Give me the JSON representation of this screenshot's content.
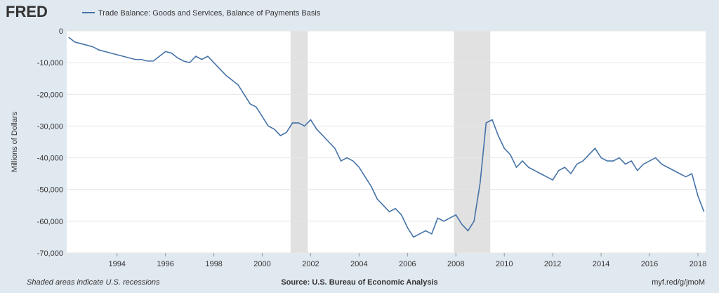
{
  "chart_data": {
    "type": "line",
    "logo": "FRED",
    "ylabel": "Millions of Dollars",
    "footnote": "Shaded areas indicate U.S. recessions",
    "source": "Source: U.S. Bureau of Economic Analysis",
    "link": "myf.red/g/jmoM",
    "x": [
      1992,
      1992.25,
      1992.5,
      1992.75,
      1993,
      1993.25,
      1993.5,
      1993.75,
      1994,
      1994.25,
      1994.5,
      1994.75,
      1995,
      1995.25,
      1995.5,
      1995.75,
      1996,
      1996.25,
      1996.5,
      1996.75,
      1997,
      1997.25,
      1997.5,
      1997.75,
      1998,
      1998.25,
      1998.5,
      1998.75,
      1999,
      1999.25,
      1999.5,
      1999.75,
      2000,
      2000.25,
      2000.5,
      2000.75,
      2001,
      2001.25,
      2001.5,
      2001.75,
      2002,
      2002.25,
      2002.5,
      2002.75,
      2003,
      2003.25,
      2003.5,
      2003.75,
      2004,
      2004.25,
      2004.5,
      2004.75,
      2005,
      2005.25,
      2005.5,
      2005.75,
      2006,
      2006.25,
      2006.5,
      2006.75,
      2007,
      2007.25,
      2007.5,
      2007.75,
      2008,
      2008.25,
      2008.5,
      2008.75,
      2009,
      2009.25,
      2009.5,
      2009.75,
      2010,
      2010.25,
      2010.5,
      2010.75,
      2011,
      2011.25,
      2011.5,
      2011.75,
      2012,
      2012.25,
      2012.5,
      2012.75,
      2013,
      2013.25,
      2013.5,
      2013.75,
      2014,
      2014.25,
      2014.5,
      2014.75,
      2015,
      2015.25,
      2015.5,
      2015.75,
      2016,
      2016.25,
      2016.5,
      2016.75,
      2017,
      2017.25,
      2017.5,
      2017.75,
      2018,
      2018.25
    ],
    "series": [
      {
        "name": "Trade Balance: Goods and Services, Balance of Payments Basis",
        "color": "#4572a7",
        "values": [
          -2000,
          -3500,
          -4000,
          -4500,
          -5000,
          -6000,
          -6500,
          -7000,
          -7500,
          -8000,
          -8500,
          -9000,
          -9000,
          -9500,
          -9500,
          -8000,
          -6500,
          -7000,
          -8500,
          -9500,
          -10000,
          -8000,
          -9000,
          -8000,
          -10000,
          -12000,
          -14000,
          -15500,
          -17000,
          -20000,
          -23000,
          -24000,
          -27000,
          -30000,
          -31000,
          -33000,
          -32000,
          -29000,
          -29000,
          -30000,
          -28000,
          -31000,
          -33000,
          -35000,
          -37000,
          -41000,
          -40000,
          -41000,
          -43000,
          -46000,
          -49000,
          -53000,
          -55000,
          -57000,
          -56000,
          -58000,
          -62000,
          -65000,
          -64000,
          -63000,
          -64000,
          -59000,
          -60000,
          -59000,
          -58000,
          -61000,
          -63000,
          -60000,
          -48000,
          -29000,
          -28000,
          -33000,
          -37000,
          -39000,
          -43000,
          -41000,
          -43000,
          -44000,
          -45000,
          -46000,
          -47000,
          -44000,
          -43000,
          -45000,
          -42000,
          -41000,
          -39000,
          -37000,
          -40000,
          -41000,
          -41000,
          -40000,
          -42000,
          -41000,
          -44000,
          -42000,
          -41000,
          -40000,
          -42000,
          -43000,
          -44000,
          -45000,
          -46000,
          -45000,
          -52000,
          -57000
        ]
      }
    ],
    "recessions": [
      [
        2001.17,
        2001.88
      ],
      [
        2007.92,
        2009.42
      ]
    ],
    "xlim": [
      1991.92,
      2018.32
    ],
    "xticks": [
      1994,
      1996,
      1998,
      2000,
      2002,
      2004,
      2006,
      2008,
      2010,
      2012,
      2014,
      2016,
      2018
    ],
    "ylim": [
      -70000,
      0
    ],
    "yticks": [
      0,
      {
        "value": -10000,
        "label": "-10,000"
      },
      {
        "value": -20000,
        "label": "-20,000"
      },
      {
        "value": -30000,
        "label": "-30,000"
      },
      {
        "value": -40000,
        "label": "-40,000"
      },
      {
        "value": -50000,
        "label": "-50,000"
      },
      {
        "value": -60000,
        "label": "-60,000"
      },
      {
        "value": -70000,
        "label": "-70,000"
      }
    ],
    "grid": true
  }
}
